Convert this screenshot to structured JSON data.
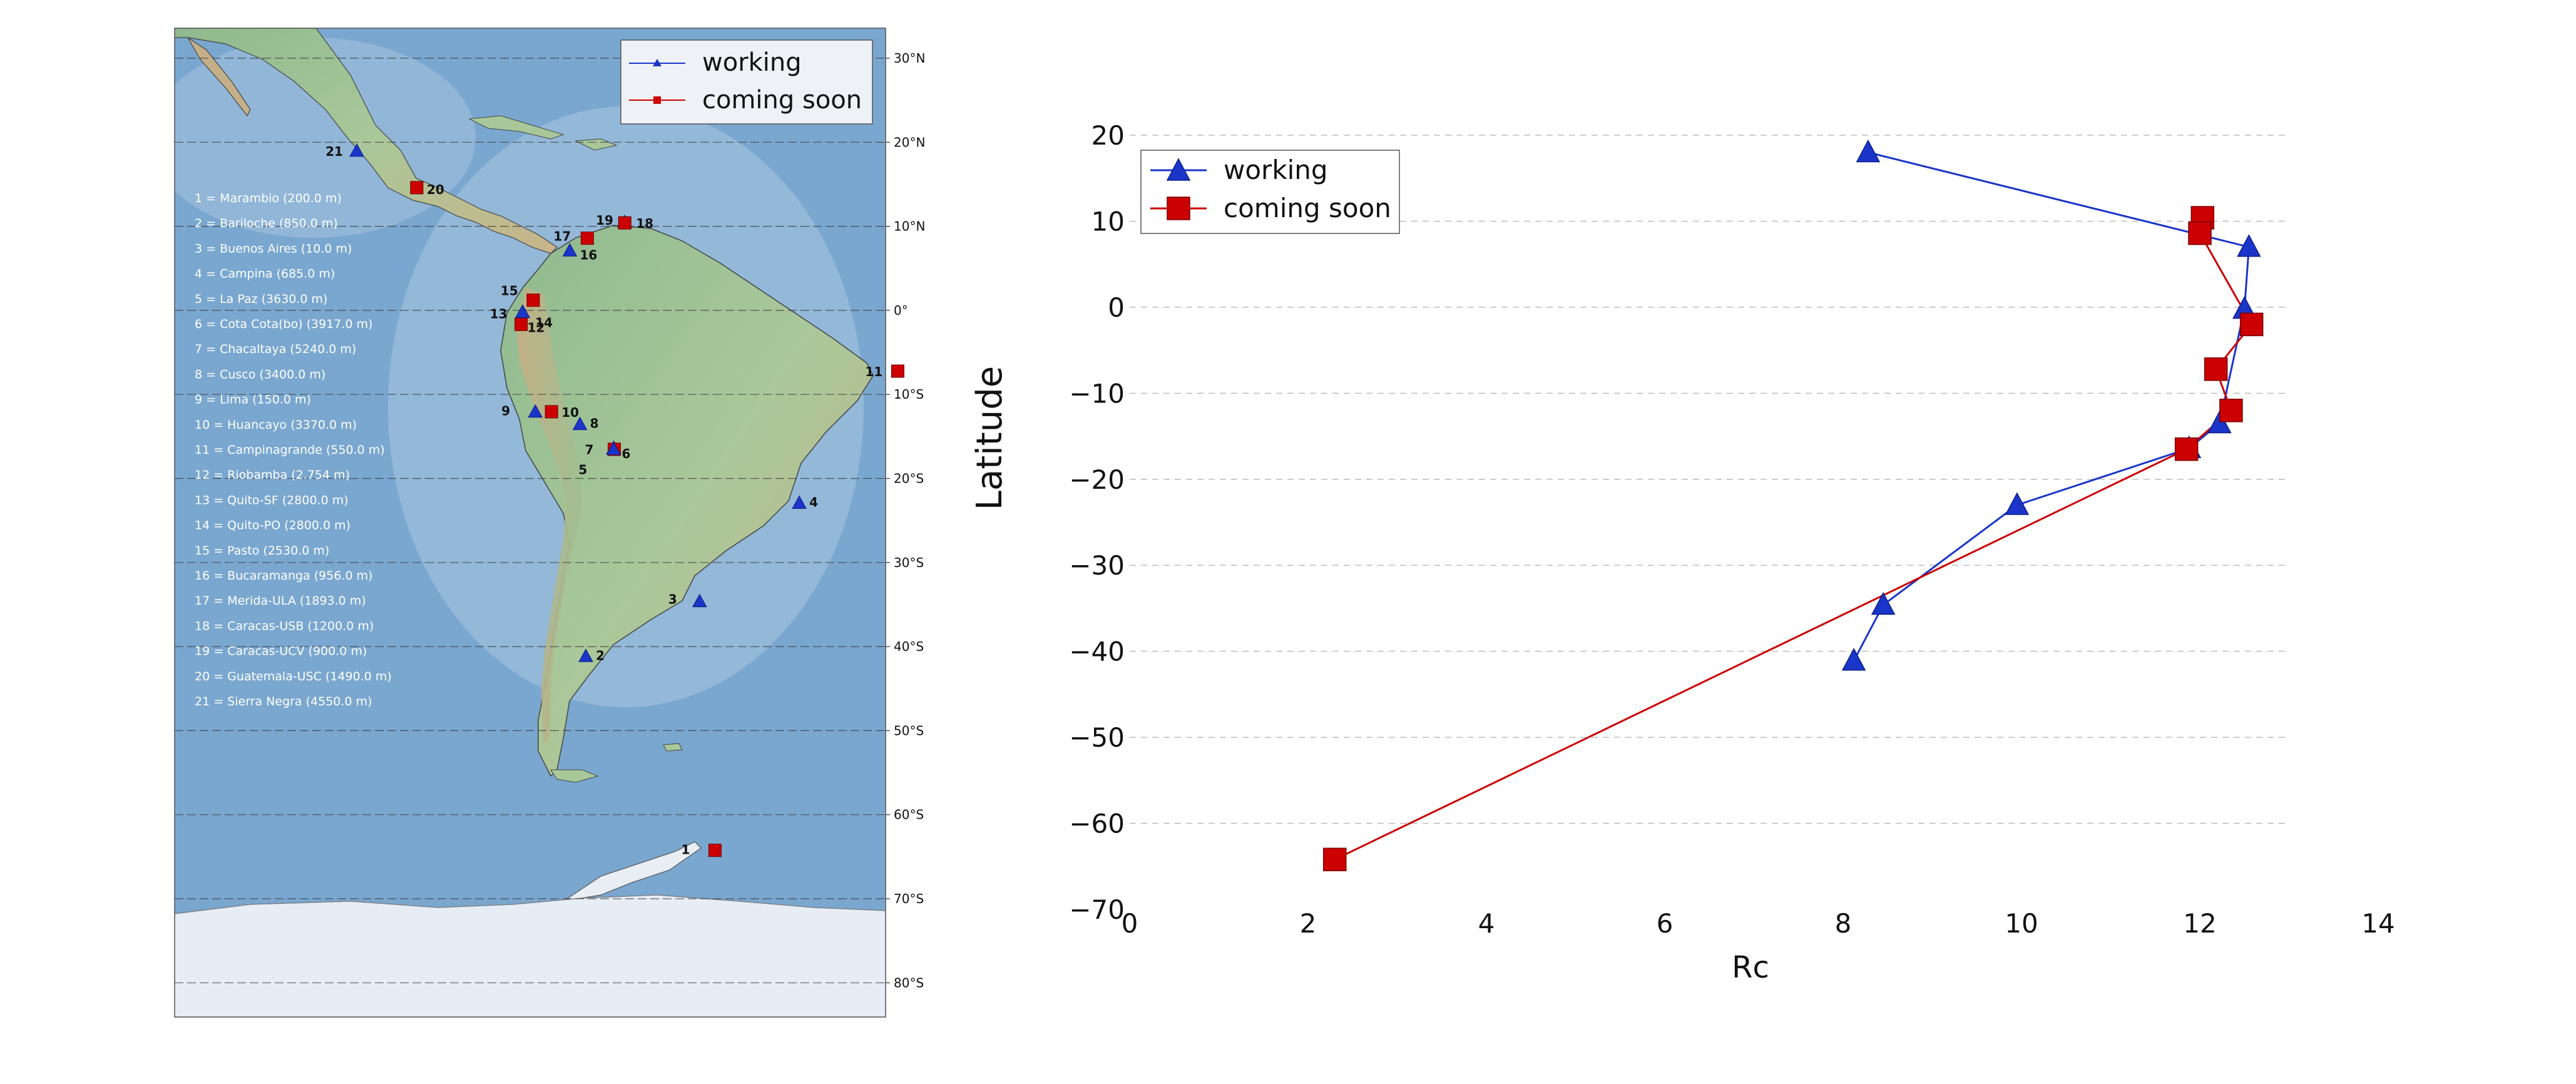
{
  "map": {
    "lat_labels": [
      "30°N",
      "20°N",
      "10°N",
      "0°",
      "10°S",
      "20°S",
      "30°S",
      "40°S",
      "50°S",
      "60°S",
      "70°S",
      "80°S"
    ],
    "station_list": [
      "1 = Marambio (200.0 m)",
      "2 = Bariloche (850.0 m)",
      "3 = Buenos Aires (10.0 m)",
      "4 = Campina (685.0 m)",
      "5 = La Paz (3630.0 m)",
      "6 = Cota Cota(bo) (3917.0 m)",
      "7 = Chacaltaya (5240.0 m)",
      "8 = Cusco (3400.0 m)",
      "9 = Lima (150.0 m)",
      "10 = Huancayo (3370.0 m)",
      "11 = Campinagrande (550.0 m)",
      "12 = Riobamba (2.754 m)",
      "13 = Quito-SF (2800.0 m)",
      "14 = Quito-PO (2800.0 m)",
      "15 = Pasto (2530.0 m)",
      "16 = Bucaramanga (956.0 m)",
      "17 = Merida-ULA (1893.0 m)",
      "18 = Caracas-USB (1200.0 m)",
      "19 = Caracas-UCV (900.0 m)",
      "20 = Guatemala-USC (1490.0 m)",
      "21 = Sierra Negra (4550.0 m)"
    ],
    "legend": {
      "working": "working",
      "coming_soon": "coming soon"
    },
    "markers": [
      {
        "id": "21",
        "status": "working",
        "lat": 18.99,
        "lon": -97.31
      },
      {
        "id": "20",
        "status": "coming soon",
        "lat": 14.6,
        "lon": -90.5
      },
      {
        "id": "19",
        "status": "working",
        "lat": 10.49,
        "lon": -66.89
      },
      {
        "id": "18",
        "status": "coming soon",
        "lat": 10.41,
        "lon": -66.88
      },
      {
        "id": "17",
        "status": "coming soon",
        "lat": 8.59,
        "lon": -71.14
      },
      {
        "id": "16",
        "status": "working",
        "lat": 7.12,
        "lon": -73.12
      },
      {
        "id": "15",
        "status": "coming soon",
        "lat": 1.21,
        "lon": -77.28
      },
      {
        "id": "14",
        "status": "working",
        "lat": -0.18,
        "lon": -78.47
      },
      {
        "id": "13",
        "status": "working",
        "lat": -0.2,
        "lon": -78.5
      },
      {
        "id": "12",
        "status": "coming soon",
        "lat": -1.67,
        "lon": -78.65
      },
      {
        "id": "11",
        "status": "coming soon",
        "lat": -7.23,
        "lon": -35.88
      },
      {
        "id": "10",
        "status": "coming soon",
        "lat": -12.06,
        "lon": -75.2
      },
      {
        "id": "9",
        "status": "working",
        "lat": -12.05,
        "lon": -77.04
      },
      {
        "id": "8",
        "status": "working",
        "lat": -13.53,
        "lon": -71.97
      },
      {
        "id": "7",
        "status": "working",
        "lat": -16.35,
        "lon": -68.13
      },
      {
        "id": "6",
        "status": "coming soon",
        "lat": -16.53,
        "lon": -68.07
      },
      {
        "id": "5",
        "status": "working",
        "lat": -16.5,
        "lon": -68.15
      },
      {
        "id": "4",
        "status": "working",
        "lat": -22.9,
        "lon": -47.06
      },
      {
        "id": "3",
        "status": "working",
        "lat": -34.6,
        "lon": -58.38
      },
      {
        "id": "2",
        "status": "working",
        "lat": -41.13,
        "lon": -71.3
      },
      {
        "id": "1",
        "status": "coming soon",
        "lat": -64.24,
        "lon": -56.63
      }
    ]
  },
  "chart_data": {
    "type": "line",
    "title": "",
    "xlabel": "Rc",
    "ylabel": "Latitude",
    "xlim": [
      0,
      14
    ],
    "ylim": [
      -70,
      20
    ],
    "xticks": [
      0,
      2,
      4,
      6,
      8,
      10,
      12,
      14
    ],
    "yticks": [
      20,
      10,
      0,
      -10,
      -20,
      -30,
      -40,
      -50,
      -60,
      -70
    ],
    "grid": "horizontal dashed",
    "legend_position": "top-left",
    "series": [
      {
        "name": "working",
        "color": "#1a35c8",
        "marker": "triangle",
        "points": [
          {
            "x": 8.28,
            "y": 18.0
          },
          {
            "x": 12.55,
            "y": 7.0
          },
          {
            "x": 12.5,
            "y": -0.2
          },
          {
            "x": 12.22,
            "y": -13.5
          },
          {
            "x": 11.88,
            "y": -16.4
          },
          {
            "x": 9.95,
            "y": -23.0
          },
          {
            "x": 8.45,
            "y": -34.6
          },
          {
            "x": 8.12,
            "y": -41.1
          }
        ]
      },
      {
        "name": "coming soon",
        "color": "#cc0000",
        "marker": "square",
        "points": [
          {
            "x": 12.03,
            "y": 10.4
          },
          {
            "x": 12.0,
            "y": 8.6
          },
          {
            "x": 12.58,
            "y": -2.0
          },
          {
            "x": 12.18,
            "y": -7.2
          },
          {
            "x": 12.35,
            "y": -12.0
          },
          {
            "x": 11.85,
            "y": -16.5
          },
          {
            "x": 2.3,
            "y": -64.2
          }
        ]
      }
    ]
  }
}
